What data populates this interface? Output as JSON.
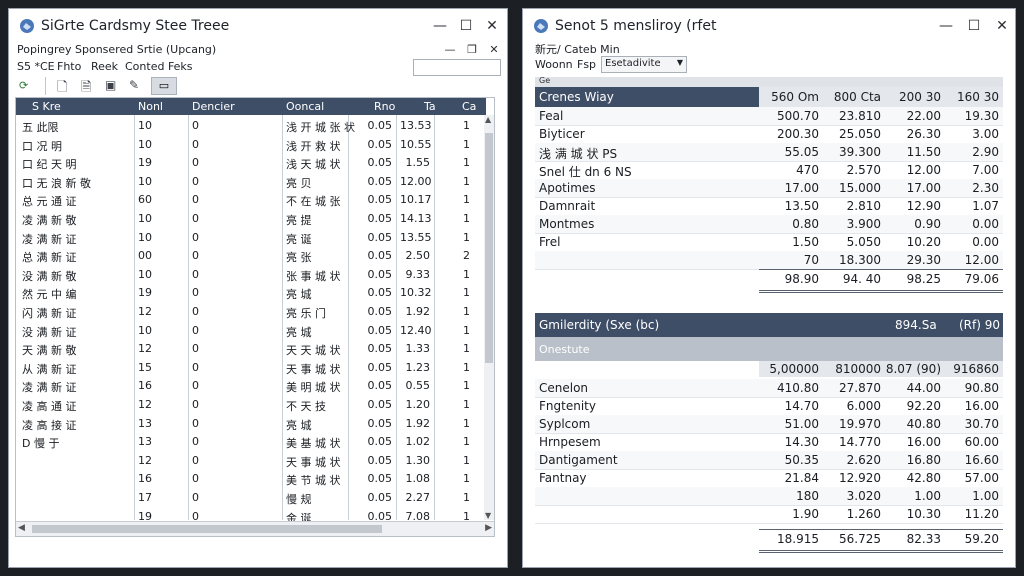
{
  "left_window": {
    "title": "SiGrte Cardsmy Stee Treee",
    "controls": [
      "—",
      "☐",
      "✕"
    ],
    "subtitle": "Popingrey Sponsered Srtie (Upcang)",
    "menu": [
      "S5 *CE",
      "Fhto",
      "Reek",
      "Conted Feks"
    ],
    "columns": [
      "S Kre",
      "Nonl",
      "Dencier",
      "Ooncal",
      "Rno",
      "Ta",
      "Ca"
    ],
    "rows": [
      [
        "五 此限",
        "10",
        "0",
        "浅 开 城 张 状",
        "0.05",
        "13.53",
        "1"
      ],
      [
        "口 况 明",
        "10",
        "0",
        "浅 开 救 状",
        "0.05",
        "10.55",
        "1"
      ],
      [
        "口 纪 天 明",
        "19",
        "0",
        "浅 天 城 状",
        "0.05",
        "1.55",
        "1"
      ],
      [
        "口 无 浪 新 敬",
        "10",
        "0",
        "亮 贝",
        "0.05",
        "12.00",
        "1"
      ],
      [
        "总 元 通 证",
        "60",
        "0",
        "不 在 城 张",
        "0.05",
        "10.17",
        "1"
      ],
      [
        "凌 满 新 敬",
        "10",
        "0",
        "亮 提",
        "0.05",
        "14.13",
        "1"
      ],
      [
        "凌 满 新 证",
        "10",
        "0",
        "亮 诞",
        "0.05",
        "13.55",
        "1"
      ],
      [
        "总 满 新 证",
        "00",
        "0",
        "亮 张",
        "0.05",
        "2.50",
        "2"
      ],
      [
        "没 满 新 敬",
        "10",
        "0",
        "张 事 城 状",
        "0.05",
        "9.33",
        "1"
      ],
      [
        "然 元 中 编",
        "19",
        "0",
        "亮 城",
        "0.05",
        "10.32",
        "1"
      ],
      [
        "闪 满 新 证",
        "12",
        "0",
        "亮 乐 门",
        "0.05",
        "1.92",
        "1"
      ],
      [
        "没 满 新 证",
        "10",
        "0",
        "亮 城",
        "0.05",
        "12.40",
        "1"
      ],
      [
        "天 满 新 敬",
        "12",
        "0",
        "天 天 城 状",
        "0.05",
        "1.33",
        "1"
      ],
      [
        "从 满 新 证",
        "15",
        "0",
        "天 事 城 状",
        "0.05",
        "1.23",
        "1"
      ],
      [
        "凌 满 新 证",
        "16",
        "0",
        "美 明 城 状",
        "0.05",
        "0.55",
        "1"
      ],
      [
        "凌 高 通 证",
        "12",
        "0",
        "不 天 技",
        "0.05",
        "1.20",
        "1"
      ],
      [
        "凌 高 接 证",
        "13",
        "0",
        "亮 城",
        "0.05",
        "1.92",
        "1"
      ],
      [
        "D 慢 于",
        "13",
        "0",
        "美 基 城 状",
        "0.05",
        "1.02",
        "1"
      ],
      [
        "",
        "12",
        "0",
        "天 事 城 状",
        "0.05",
        "1.30",
        "1"
      ],
      [
        "",
        "16",
        "0",
        "美 节 城 状",
        "0.05",
        "1.08",
        "1"
      ],
      [
        "",
        "17",
        "0",
        "慢 规",
        "0.05",
        "2.27",
        "1"
      ],
      [
        "",
        "19",
        "0",
        "金 诞",
        "0.05",
        "7.08",
        "1"
      ]
    ]
  },
  "right_window": {
    "title": "Senot 5 mensliroy (rfet",
    "controls": [
      "—",
      "☐",
      "✕"
    ],
    "subtitle": "新元/ Cateb Min",
    "filter": [
      "Woonn",
      "Fsp",
      "Esetadivite"
    ],
    "table1": {
      "header_label": "Crenes Wiay",
      "header_small": "Ge",
      "header_cols": [
        "560 Om",
        "800 Cta",
        "200 30",
        "160 30"
      ],
      "rows": [
        [
          "Feal",
          "500.70",
          "23.810",
          "22.00",
          "19.30"
        ],
        [
          "Biyticer",
          "200.30",
          "25.050",
          "26.30",
          "3.00"
        ],
        [
          "浅 满 城 状 PS",
          "55.05",
          "39.300",
          "11.50",
          "2.90"
        ],
        [
          "Snel 仕 dn 6 ΝS",
          "470",
          "2.570",
          "12.00",
          "7.00"
        ],
        [
          "Apotimes",
          "17.00",
          "15.000",
          "17.00",
          "2.30"
        ],
        [
          "Damnrait",
          "13.50",
          "2.810",
          "12.90",
          "1.07"
        ],
        [
          "Montmes",
          "0.80",
          "3.900",
          "0.90",
          "0.00"
        ],
        [
          "Frel",
          "1.50",
          "5.050",
          "10.20",
          "0.00"
        ],
        [
          "",
          "70",
          "18.300",
          "29.30",
          "12.00"
        ]
      ],
      "totals": [
        "98.90",
        "94. 40",
        "98.25",
        "79.06"
      ]
    },
    "table2": {
      "header_label": "Gmilerdity (Sxe (bc)",
      "header_cols": [
        "894.Sa",
        "(Rf) 90"
      ],
      "section_label": "Onestute",
      "subhead": [
        "5,00000",
        "810000",
        "8.07 (90)",
        "916860"
      ],
      "rows": [
        [
          "Cenelon",
          "410.80",
          "27.870",
          "44.00",
          "90.80"
        ],
        [
          "Fngtenity",
          "14.70",
          "6.000",
          "92.20",
          "16.00"
        ],
        [
          "Syplcom",
          "51.00",
          "19.970",
          "40.80",
          "30.70"
        ],
        [
          "Hrnpesem",
          "14.30",
          "14.770",
          "16.00",
          "60.00"
        ],
        [
          "Dantigament",
          "50.35",
          "2.620",
          "16.80",
          "16.60"
        ],
        [
          "Fantnay",
          "21.84",
          "12.920",
          "42.80",
          "57.00"
        ],
        [
          "",
          "180",
          "3.020",
          "1.00",
          "1.00"
        ],
        [
          "",
          "1.90",
          "1.260",
          "10.30",
          "11.20"
        ]
      ],
      "totals": [
        "18.915",
        "56.725",
        "82.33",
        "59.20"
      ]
    }
  }
}
